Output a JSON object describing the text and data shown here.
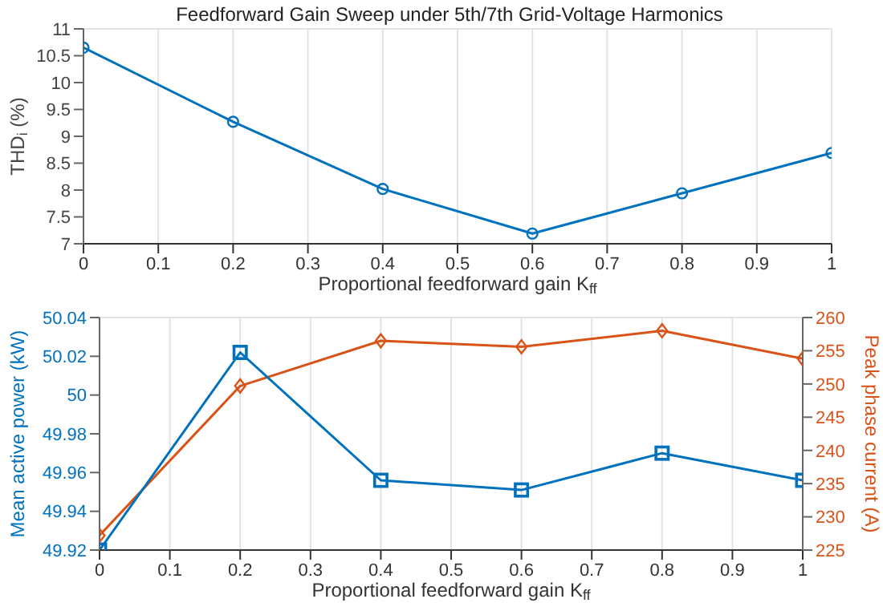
{
  "chart_data": [
    {
      "type": "line",
      "title": "Feedforward Gain Sweep under 5th/7th Grid-Voltage Harmonics",
      "xlabel": "Proportional feedforward gain K$_{ff}$",
      "ylabel": "THD$_{i}$ (%)",
      "x": [
        0,
        0.2,
        0.4,
        0.6,
        0.8,
        1
      ],
      "series": [
        {
          "color": "#0072bd",
          "marker": "circle",
          "values": [
            10.65,
            9.27,
            8.02,
            7.19,
            7.94,
            8.69
          ]
        }
      ],
      "xlim": [
        0,
        1
      ],
      "xticks": [
        0,
        0.1,
        0.2,
        0.3,
        0.4,
        0.5,
        0.6,
        0.7,
        0.8,
        0.9,
        1
      ],
      "ylim": [
        7,
        11
      ],
      "yticks": [
        7,
        7.5,
        8,
        8.5,
        9,
        9.5,
        10,
        10.5,
        11
      ],
      "grid": true,
      "legend": false
    },
    {
      "type": "line",
      "xlabel": "Proportional feedforward gain K$_{ff}$",
      "ylabel": "Mean active power (kW)",
      "y2label": "Peak phase current (A)",
      "x": [
        0,
        0.2,
        0.4,
        0.6,
        0.8,
        1
      ],
      "series": [
        {
          "color": "#0072bd",
          "marker": "square",
          "values": [
            49.92,
            50.022,
            49.956,
            49.951,
            49.97,
            49.956
          ]
        },
        {
          "color": "#d95319",
          "marker": "diamond",
          "axis": "y2",
          "values": [
            227.2,
            249.7,
            256.5,
            255.6,
            258.0,
            253.8
          ]
        }
      ],
      "xlim": [
        0,
        1
      ],
      "xticks": [
        0,
        0.1,
        0.2,
        0.3,
        0.4,
        0.5,
        0.6,
        0.7,
        0.8,
        0.9,
        1
      ],
      "ylim": [
        49.92,
        50.04
      ],
      "yticks": [
        49.92,
        49.94,
        49.96,
        49.98,
        50,
        50.02,
        50.04
      ],
      "y2lim": [
        225,
        260
      ],
      "y2ticks": [
        225,
        230,
        235,
        240,
        245,
        250,
        255,
        260
      ],
      "grid": true,
      "legend": false
    }
  ]
}
